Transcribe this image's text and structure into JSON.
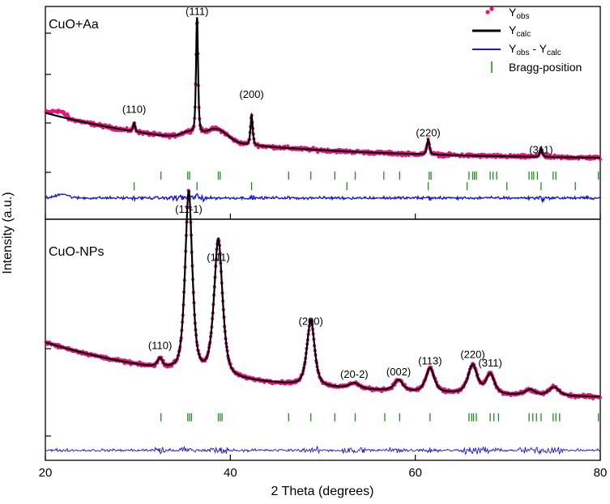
{
  "chart_data": {
    "type": "line",
    "title": "",
    "xlabel": "2 Theta (degrees)",
    "ylabel": "Intensity (a.u.)",
    "xlim": [
      20,
      80
    ],
    "xticks": [
      20,
      40,
      60,
      80
    ],
    "grid": false,
    "legend": {
      "placement": "top-right",
      "entries": [
        {
          "key": "obs",
          "label": "Y",
          "sub": "obs",
          "style": "dots",
          "color": "#e8137d"
        },
        {
          "key": "calc",
          "label": "Y",
          "sub": "calc",
          "style": "line",
          "color": "#000000"
        },
        {
          "key": "diff",
          "label": "Y",
          "sub": "obs",
          "mid": " - Y",
          "sub2": "calc",
          "style": "line",
          "color": "#1a1acc"
        },
        {
          "key": "bragg",
          "label": "Bragg-position",
          "style": "bar",
          "color": "#1e8c1e"
        }
      ]
    },
    "panels": [
      {
        "name": "CuO+Aa",
        "ylim": [
          0,
          100
        ],
        "yticks": [
          60,
          85
        ],
        "baseline": {
          "start": 50,
          "end": 28,
          "decay": 1.6,
          "bump_center": 38.5,
          "bump_amp": 6,
          "bump_width": 1.2
        },
        "peaks": [
          {
            "pos": 29.6,
            "height": 4,
            "width": 0.12,
            "label": "(110)",
            "label_value": 50
          },
          {
            "pos": 35.4,
            "height": 3,
            "width": 0.9,
            "label": null
          },
          {
            "pos": 36.4,
            "height": 55,
            "width": 0.12,
            "label": "(111)",
            "label_value": 96
          },
          {
            "pos": 42.3,
            "height": 14,
            "width": 0.13,
            "label": "(200)",
            "label_value": 57
          },
          {
            "pos": 61.4,
            "height": 7,
            "width": 0.15,
            "label": "(220)",
            "label_value": 39
          },
          {
            "pos": 73.6,
            "height": 4,
            "width": 0.15,
            "label": "(311)",
            "label_value": 31
          }
        ],
        "bragg_rows": [
          {
            "level": 20.5,
            "positions": [
              32.5,
              35.4,
              35.6,
              38.7,
              38.9,
              46.3,
              48.7,
              51.3,
              53.5,
              56.6,
              58.3,
              61.5,
              61.7,
              65.8,
              66.2,
              66.4,
              66.6,
              68.1,
              68.4,
              68.8,
              72.3,
              72.6,
              72.8,
              73.2,
              74.9,
              75.2,
              79.8
            ]
          },
          {
            "level": 15.5,
            "positions": [
              29.6,
              36.4,
              42.3,
              52.6,
              61.4,
              65.6,
              69.9,
              73.6,
              77.3
            ]
          }
        ],
        "difference_level": 10,
        "difference_low_bump": {
          "center": 21.8,
          "amp": 2
        }
      },
      {
        "name": "CuO-NPs",
        "ylim": [
          0,
          100
        ],
        "yticks": [
          45,
          0
        ],
        "baseline": {
          "start": 44,
          "end": 18,
          "decay": 1.5
        },
        "peaks": [
          {
            "pos": 32.4,
            "height": 4,
            "width": 0.3,
            "label": "(110)",
            "label_value": 41
          },
          {
            "pos": 35.5,
            "height": 82,
            "width": 0.42,
            "label": "(11-1)",
            "label_value": 103
          },
          {
            "pos": 38.7,
            "height": 62,
            "width": 0.5,
            "label": "(111)",
            "label_value": 81
          },
          {
            "pos": 48.7,
            "height": 30,
            "width": 0.45,
            "label": "(200)",
            "label_value": 52
          },
          {
            "pos": 53.4,
            "height": 2.5,
            "width": 0.6,
            "label": "(20-2)",
            "label_value": 28
          },
          {
            "pos": 58.2,
            "height": 5,
            "width": 0.5,
            "label": "(002)",
            "label_value": 29
          },
          {
            "pos": 61.6,
            "height": 11,
            "width": 0.5,
            "label": "(113)",
            "label_value": 34
          },
          {
            "pos": 66.2,
            "height": 13,
            "width": 0.55,
            "label": "(220)",
            "label_value": 37
          },
          {
            "pos": 68.1,
            "height": 9,
            "width": 0.5,
            "label": "(311)",
            "label_value": 33
          },
          {
            "pos": 72.4,
            "height": 2.5,
            "width": 0.6,
            "label": null
          },
          {
            "pos": 75.0,
            "height": 4,
            "width": 0.6,
            "label": null
          }
        ],
        "bragg_rows": [
          {
            "level": 10,
            "positions": [
              32.5,
              35.4,
              35.6,
              35.8,
              38.7,
              38.9,
              39.1,
              46.3,
              48.7,
              51.3,
              53.5,
              56.7,
              58.3,
              61.6,
              65.8,
              66.1,
              66.3,
              66.6,
              68.1,
              68.5,
              69.0,
              72.3,
              72.7,
              73.1,
              73.6,
              74.9,
              75.2,
              75.6,
              79.8
            ]
          }
        ],
        "difference_level": -5
      }
    ]
  }
}
